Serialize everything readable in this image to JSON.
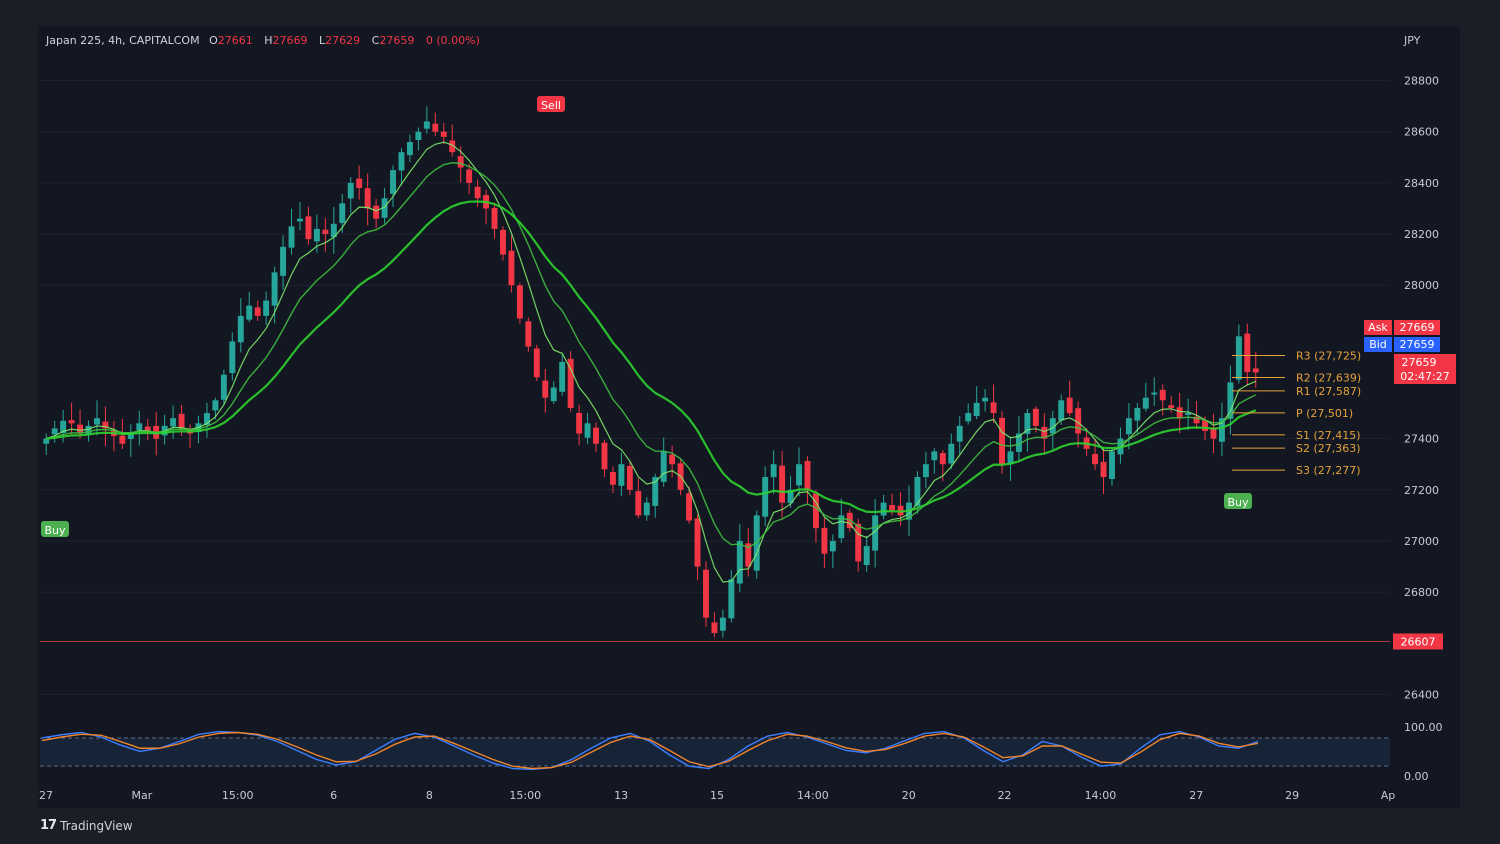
{
  "header": {
    "symbol": "Japan 225, 4h, CAPITALCOM",
    "open_label": "O",
    "open": "27661",
    "high_label": "H",
    "high": "27669",
    "low_label": "L",
    "low": "27629",
    "close_label": "C",
    "close": "27659",
    "change": "0 (0.00%)"
  },
  "currency": "JPY",
  "footer": {
    "logo": "17",
    "brand": "TradingView"
  },
  "colors": {
    "up": "#26a69a",
    "down": "#f23645",
    "level": "#e6a23a",
    "background": "#131722"
  },
  "chart_data": {
    "type": "candlestick",
    "ylim": [
      26300,
      28900
    ],
    "y_ticks": [
      28800,
      28600,
      28400,
      28200,
      28000,
      27400,
      27200,
      27000,
      26800,
      26400
    ],
    "x_ticks": [
      "27",
      "Mar",
      "15:00",
      "6",
      "8",
      "15:00",
      "13",
      "15",
      "14:00",
      "20",
      "22",
      "14:00",
      "27",
      "29",
      "Ap"
    ],
    "close_series": [
      27400,
      27440,
      27470,
      27460,
      27420,
      27450,
      27480,
      27440,
      27410,
      27380,
      27420,
      27460,
      27430,
      27400,
      27450,
      27480,
      27440,
      27420,
      27460,
      27500,
      27550,
      27650,
      27780,
      27880,
      27920,
      27880,
      27940,
      28050,
      28150,
      28230,
      28260,
      28180,
      28220,
      28200,
      28240,
      28320,
      28400,
      28380,
      28300,
      28260,
      28340,
      28450,
      28520,
      28560,
      28600,
      28640,
      28600,
      28580,
      28520,
      28460,
      28400,
      28340,
      28300,
      28220,
      28120,
      28000,
      27870,
      27760,
      27640,
      27560,
      27600,
      27700,
      27520,
      27420,
      27460,
      27380,
      27280,
      27220,
      27300,
      27200,
      27100,
      27150,
      27250,
      27350,
      27300,
      27200,
      27080,
      26900,
      26700,
      26640,
      26700,
      26850,
      27000,
      26900,
      27100,
      27250,
      27300,
      27150,
      27200,
      27300,
      27200,
      27050,
      26950,
      27000,
      27100,
      27050,
      26920,
      26980,
      27100,
      27150,
      27120,
      27100,
      27150,
      27250,
      27300,
      27350,
      27300,
      27380,
      27450,
      27500,
      27540,
      27560,
      27500,
      27300,
      27350,
      27420,
      27500,
      27450,
      27400,
      27480,
      27550,
      27500,
      27420,
      27360,
      27300,
      27250,
      27350,
      27400,
      27480,
      27520,
      27560,
      27580,
      27550,
      27520,
      27480,
      27500,
      27460,
      27430,
      27400,
      27480,
      27620,
      27800,
      27660,
      27659
    ],
    "studies": {
      "pivot_levels": [
        {
          "label": "R3 (27,725)",
          "value": 27725
        },
        {
          "label": "R2 (27,639)",
          "value": 27639
        },
        {
          "label": "R1 (27,587)",
          "value": 27587
        },
        {
          "label": "P (27,501)",
          "value": 27501
        },
        {
          "label": "S1 (27,415)",
          "value": 27415
        },
        {
          "label": "S2 (27,363)",
          "value": 27363
        },
        {
          "label": "S3 (27,277)",
          "value": 27277
        }
      ],
      "price_tags": [
        {
          "name": "Ask",
          "value": "27669",
          "color": "#f23645"
        },
        {
          "name": "Bid",
          "value": "27659",
          "color": "#2962ff"
        }
      ],
      "last_price": {
        "value": "27659",
        "countdown": "02:47:27"
      },
      "horizontal_line": {
        "value": 26607,
        "label": "26607"
      },
      "signals": [
        {
          "label": "Buy",
          "type": "buy"
        },
        {
          "label": "Sell",
          "type": "sell"
        },
        {
          "label": "Buy",
          "type": "buy"
        }
      ]
    },
    "oscillator": {
      "y_ticks": [
        "100.00",
        "0.00"
      ],
      "k": [
        78,
        85,
        90,
        80,
        62,
        48,
        55,
        70,
        86,
        92,
        90,
        84,
        70,
        50,
        30,
        18,
        25,
        50,
        75,
        88,
        80,
        60,
        40,
        22,
        10,
        8,
        12,
        30,
        55,
        78,
        88,
        70,
        40,
        15,
        10,
        30,
        60,
        82,
        90,
        80,
        65,
        50,
        45,
        55,
        72,
        88,
        92,
        78,
        50,
        25,
        40,
        70,
        60,
        35,
        15,
        20,
        55,
        85,
        92,
        80,
        60,
        55,
        70
      ],
      "d": [
        72,
        80,
        86,
        84,
        70,
        55,
        55,
        65,
        80,
        88,
        90,
        86,
        75,
        58,
        40,
        25,
        26,
        42,
        64,
        80,
        82,
        66,
        48,
        30,
        15,
        10,
        12,
        24,
        46,
        68,
        82,
        74,
        50,
        25,
        14,
        26,
        50,
        72,
        86,
        82,
        70,
        56,
        48,
        52,
        66,
        82,
        88,
        80,
        58,
        34,
        38,
        60,
        60,
        42,
        24,
        22,
        46,
        74,
        88,
        82,
        66,
        58,
        66
      ]
    }
  }
}
